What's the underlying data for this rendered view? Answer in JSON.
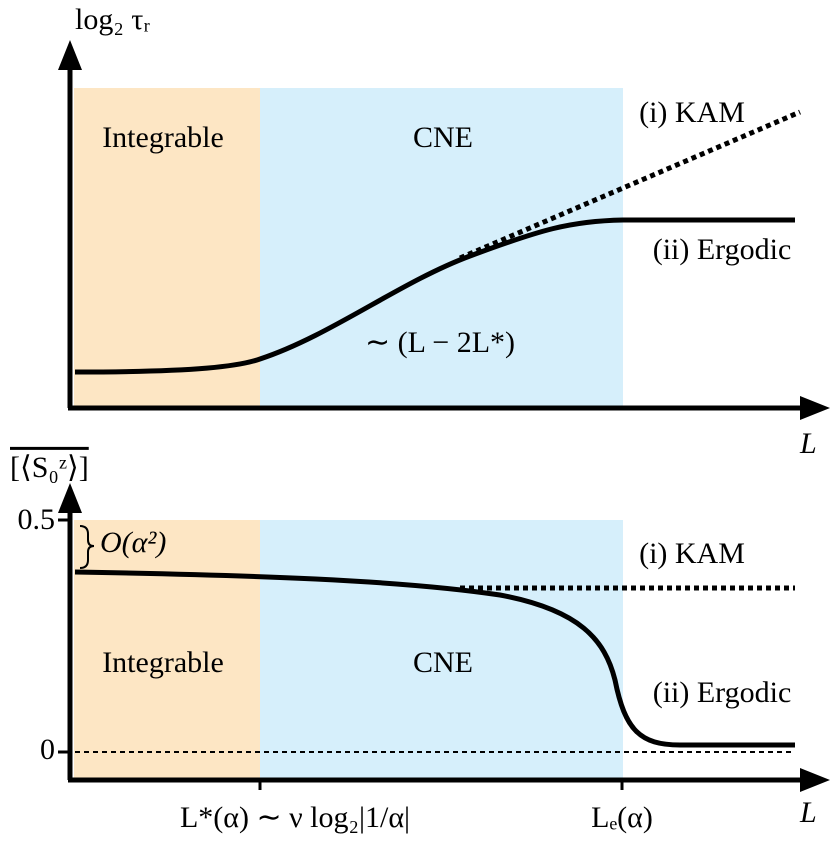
{
  "top_panel": {
    "y_axis_label": "log₂ τᵣ",
    "x_axis_label": "L",
    "regions": [
      "Integrable",
      "CNE"
    ],
    "curve_labels": [
      "(i) KAM",
      "(ii) Ergodic"
    ],
    "scaling_label": "∼ (L − 2L*)"
  },
  "bottom_panel": {
    "y_axis_label": "[⟨S₀ᶻ⟩]",
    "x_axis_label": "L",
    "y_ticks": [
      "0.5",
      "0"
    ],
    "gap_label": "O(α²)",
    "regions": [
      "Integrable",
      "CNE"
    ],
    "curve_labels": [
      "(i) KAM",
      "(ii) Ergodic"
    ],
    "x_ticks": [
      "L*(α) ∼ ν log₂|1/α|",
      "Lₑ(α)"
    ]
  }
}
